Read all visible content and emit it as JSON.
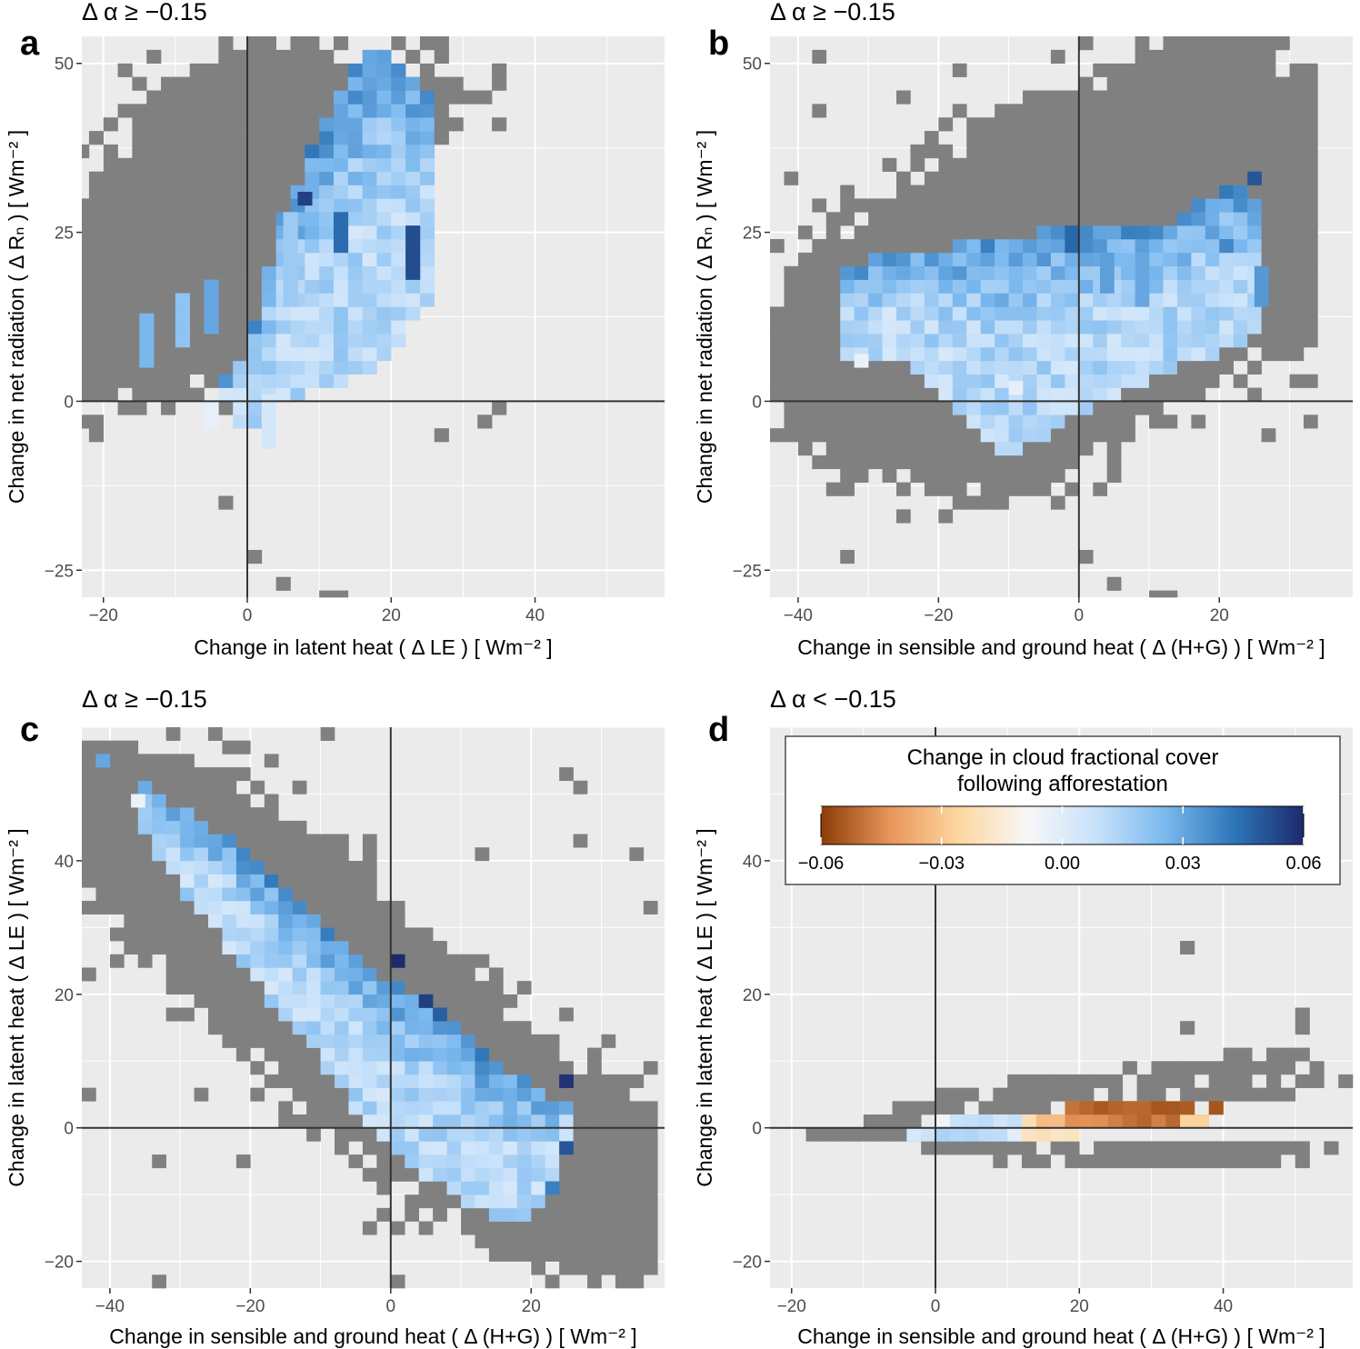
{
  "colorbar": {
    "title_line1": "Change in cloud fractional cover",
    "title_line2": "following afforestation",
    "ticks": [
      "−0.06",
      "−0.03",
      "0.00",
      "0.03",
      "0.06"
    ],
    "tick_values": [
      -0.06,
      -0.03,
      0.0,
      0.03,
      0.06
    ],
    "range": [
      -0.06,
      0.06
    ],
    "stops": [
      "#8b3c06",
      "#e8955a",
      "#fdd7a0",
      "#f7f7f7",
      "#c7e1fa",
      "#7ab8ee",
      "#2d75b8",
      "#1d2a6b"
    ]
  },
  "colors": {
    "panel_background": "#ebebeb",
    "grid": "#ffffff",
    "zero_line": "#333333",
    "no_change_bin": "#808080"
  },
  "chart_data": [
    {
      "type": "heatmap",
      "panel_letter": "a",
      "title": "Δ α ≥ −0.15",
      "xlabel": "Change in latent heat ( Δ LE ) [ Wm⁻² ]",
      "ylabel": "Change in net radiation ( Δ Rₙ ) [ Wm⁻² ]",
      "xlim": [
        -23,
        58
      ],
      "ylim": [
        -29,
        54
      ],
      "xticks": [
        -20,
        0,
        20,
        40
      ],
      "xtick_labels": [
        "−20",
        "0",
        "20",
        "40"
      ],
      "yticks": [
        -25,
        0,
        25,
        50
      ],
      "ytick_labels": [
        "−25",
        "0",
        "25",
        "50"
      ],
      "grid": true,
      "zero_lines": true,
      "bin_size": [
        2,
        2
      ],
      "gray_region": [
        [
          -24,
          0.5,
          32
        ],
        [
          -18,
          -1,
          38
        ],
        [
          -12,
          -3,
          48
        ],
        [
          -5,
          2,
          52
        ],
        [
          0,
          6,
          56
        ],
        [
          8,
          14,
          54
        ],
        [
          20,
          30,
          52
        ],
        [
          35,
          48,
          45
        ]
      ],
      "colored_region": [
        [
          -4,
          2,
          2
        ],
        [
          0,
          -6,
          8
        ],
        [
          5,
          0,
          28
        ],
        [
          12,
          2,
          44
        ],
        [
          18,
          5,
          54
        ],
        [
          25,
          14,
          46
        ]
      ],
      "cells": [
        [
          -15,
          5,
          13,
          0.026
        ],
        [
          -10,
          8,
          16,
          0.021
        ],
        [
          -6,
          10,
          18,
          0.03
        ],
        [
          2,
          -7,
          1,
          0.004
        ],
        [
          5,
          14,
          28,
          0.018
        ],
        [
          12,
          22,
          27,
          0.045
        ],
        [
          22,
          18,
          25,
          0.052
        ],
        [
          7,
          29,
          31,
          0.055
        ],
        [
          34,
          52,
          6,
          -0.004
        ],
        [
          44,
          46,
          11,
          -0.005
        ],
        [
          -6,
          -4,
          0,
          -0.003
        ],
        [
          10,
          8,
          1,
          -0.003
        ]
      ]
    },
    {
      "type": "heatmap",
      "panel_letter": "b",
      "title": "Δ α ≥ −0.15",
      "xlabel": "Change in sensible and ground heat ( Δ (H+G) ) [ Wm⁻² ]",
      "ylabel": "Change in net radiation ( Δ Rₙ ) [ Wm⁻² ]",
      "xlim": [
        -44,
        39
      ],
      "ylim": [
        -29,
        54
      ],
      "xticks": [
        -40,
        -20,
        0,
        20
      ],
      "xtick_labels": [
        "−40",
        "−20",
        "0",
        "20"
      ],
      "yticks": [
        -25,
        0,
        25,
        50
      ],
      "ytick_labels": [
        "−25",
        "0",
        "25",
        "50"
      ],
      "grid": true,
      "zero_lines": true,
      "bin_size": [
        2,
        2
      ],
      "gray_region": [
        [
          -44,
          2,
          14
        ],
        [
          -40,
          -8,
          22
        ],
        [
          -30,
          -12,
          30
        ],
        [
          -20,
          -14,
          38
        ],
        [
          -10,
          -16,
          44
        ],
        [
          0,
          -10,
          48
        ],
        [
          10,
          -4,
          54
        ],
        [
          22,
          4,
          54
        ],
        [
          34,
          8,
          50
        ]
      ],
      "colored_region": [
        [
          -34,
          6,
          20
        ],
        [
          -24,
          5,
          22
        ],
        [
          -10,
          -8,
          24
        ],
        [
          0,
          -2,
          26
        ],
        [
          12,
          4,
          26
        ],
        [
          22,
          8,
          32
        ],
        [
          26,
          12,
          30
        ]
      ],
      "cells": [
        [
          -32,
          5,
          7,
          -0.004
        ],
        [
          -10,
          1,
          3,
          -0.003
        ],
        [
          8,
          14,
          22,
          0.03
        ],
        [
          20,
          22,
          24,
          0.038
        ],
        [
          25,
          14,
          20,
          0.034
        ],
        [
          24,
          32,
          34,
          0.05
        ],
        [
          -2,
          22,
          25,
          0.046
        ],
        [
          3,
          16,
          22,
          0.032
        ]
      ]
    },
    {
      "type": "heatmap",
      "panel_letter": "c",
      "title": "Δ α ≥ −0.15",
      "xlabel": "Change in sensible and ground heat ( Δ (H+G) ) [ Wm⁻² ]",
      "ylabel": "Change in latent heat ( Δ LE ) [ Wm⁻² ]",
      "xlim": [
        -44,
        39
      ],
      "ylim": [
        -24,
        60
      ],
      "xticks": [
        -40,
        -20,
        0,
        20
      ],
      "xtick_labels": [
        "−40",
        "−20",
        "0",
        "20"
      ],
      "yticks": [
        -20,
        0,
        20,
        40
      ],
      "ytick_labels": [
        "−20",
        "0",
        "20",
        "40"
      ],
      "grid": true,
      "zero_lines": true,
      "bin_size": [
        2,
        2
      ],
      "gray_region": [
        [
          -44,
          38,
          58
        ],
        [
          -40,
          30,
          58
        ],
        [
          -32,
          22,
          56
        ],
        [
          -24,
          14,
          54
        ],
        [
          -16,
          6,
          50
        ],
        [
          -8,
          -2,
          42
        ],
        [
          0,
          -10,
          34
        ],
        [
          8,
          -14,
          28
        ],
        [
          16,
          -20,
          20
        ],
        [
          24,
          -24,
          14
        ],
        [
          32,
          -24,
          8
        ],
        [
          38,
          -24,
          2
        ]
      ],
      "colored_region": [
        [
          -36,
          46,
          52
        ],
        [
          -30,
          36,
          48
        ],
        [
          -24,
          28,
          44
        ],
        [
          -18,
          20,
          38
        ],
        [
          -12,
          14,
          32
        ],
        [
          -6,
          4,
          26
        ],
        [
          0,
          -4,
          22
        ],
        [
          6,
          -8,
          18
        ],
        [
          12,
          -12,
          12
        ],
        [
          18,
          -14,
          8
        ],
        [
          22,
          -12,
          4
        ],
        [
          26,
          0,
          4
        ]
      ],
      "cells": [
        [
          -37,
          48,
          50,
          -0.005
        ],
        [
          0,
          24,
          26,
          0.06
        ],
        [
          4,
          18,
          20,
          0.055
        ],
        [
          6,
          16,
          18,
          0.048
        ],
        [
          24,
          6,
          8,
          0.058
        ],
        [
          22,
          -10,
          -8,
          0.04
        ],
        [
          24,
          -4,
          -2,
          0.05
        ],
        [
          -42,
          54,
          56,
          0.03
        ]
      ]
    },
    {
      "type": "heatmap",
      "panel_letter": "d",
      "title": "Δ α < −0.15",
      "xlabel": "Change in sensible and ground heat ( Δ (H+G) ) [ Wm⁻² ]",
      "ylabel": "Change in latent heat ( Δ LE ) [ Wm⁻² ]",
      "xlim": [
        -23,
        58
      ],
      "ylim": [
        -24,
        60
      ],
      "xticks": [
        -20,
        0,
        20,
        40
      ],
      "xtick_labels": [
        "−20",
        "0",
        "20",
        "40"
      ],
      "yticks": [
        -20,
        0,
        20,
        40
      ],
      "ytick_labels": [
        "−20",
        "0",
        "20",
        "40"
      ],
      "grid": true,
      "zero_lines": true,
      "legend_position": "top",
      "bin_size": [
        2,
        2
      ],
      "gray_rows": [
        [
          -18,
          2,
          -2,
          0
        ],
        [
          -10,
          8,
          0,
          2
        ],
        [
          -6,
          28,
          2,
          4
        ],
        [
          0,
          50,
          4,
          6
        ],
        [
          10,
          58,
          6,
          8
        ],
        [
          26,
          54,
          8,
          10
        ],
        [
          40,
          52,
          10,
          14
        ],
        [
          50,
          52,
          16,
          18
        ],
        [
          -2,
          56,
          -4,
          -2
        ],
        [
          8,
          52,
          -6,
          -4
        ]
      ],
      "colored_rows": [
        [
          -4,
          0,
          -2,
          0,
          0.006
        ],
        [
          0,
          6,
          -2,
          0,
          0.012
        ],
        [
          6,
          10,
          -2,
          0,
          0.008
        ],
        [
          10,
          12,
          -2,
          0,
          -0.003
        ],
        [
          12,
          20,
          -2,
          0,
          -0.02
        ],
        [
          0,
          2,
          0,
          2,
          -0.003
        ],
        [
          2,
          8,
          0,
          2,
          0.01
        ],
        [
          8,
          12,
          0,
          2,
          0.006
        ],
        [
          12,
          14,
          0,
          2,
          -0.02
        ],
        [
          14,
          18,
          0,
          2,
          -0.035
        ],
        [
          18,
          26,
          0,
          2,
          -0.045
        ],
        [
          26,
          34,
          0,
          2,
          -0.05
        ],
        [
          34,
          36,
          0,
          2,
          -0.025
        ],
        [
          36,
          38,
          0,
          2,
          -0.03
        ],
        [
          18,
          36,
          2,
          4,
          -0.052
        ],
        [
          38,
          40,
          2,
          4,
          -0.055
        ]
      ],
      "cells": [
        [
          34,
          26,
          28,
          null
        ],
        [
          50,
          14,
          16,
          null
        ],
        [
          34,
          14,
          16,
          null
        ]
      ]
    }
  ]
}
